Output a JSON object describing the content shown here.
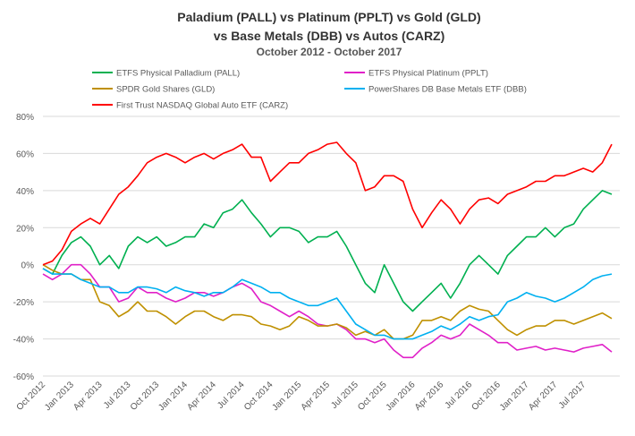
{
  "chart_data": {
    "type": "line",
    "title": [
      "Paladium (PALL) vs Platinum (PPLT) vs Gold (GLD)",
      "vs Base Metals (DBB) vs Autos (CARZ)"
    ],
    "subtitle": "October 2012 - October 2017",
    "ylim": [
      -60,
      80
    ],
    "y_ticks": [
      "-60%",
      "-40%",
      "-20%",
      "0%",
      "20%",
      "40%",
      "60%",
      "80%"
    ],
    "y_tick_values": [
      -60,
      -40,
      -20,
      0,
      20,
      40,
      60,
      80
    ],
    "x_ticks": [
      "Oct 2012",
      "Jan 2013",
      "Apr 2013",
      "Jul 2013",
      "Oct 2013",
      "Jan 2014",
      "Apr 2014",
      "Jul 2014",
      "Oct 2014",
      "Jan 2015",
      "Apr 2015",
      "Jul 2015",
      "Oct 2015",
      "Jan 2016",
      "Apr 2016",
      "Jul 2016",
      "Oct 2016",
      "Jan 2017",
      "Apr 2017",
      "Jul 2017"
    ],
    "x_unit": "months since Oct 2012",
    "grid": true,
    "legend_position": "top",
    "series": [
      {
        "name": "ETFS Physical Palladium (PALL)",
        "color": "#00b050",
        "values": [
          -2,
          -5,
          5,
          12,
          15,
          10,
          0,
          5,
          -2,
          10,
          15,
          12,
          15,
          10,
          12,
          15,
          15,
          22,
          20,
          28,
          30,
          35,
          28,
          22,
          15,
          20,
          20,
          18,
          12,
          15,
          15,
          18,
          10,
          0,
          -10,
          -15,
          0,
          -10,
          -20,
          -25,
          -20,
          -15,
          -10,
          -18,
          -10,
          0,
          5,
          0,
          -5,
          5,
          10,
          15,
          15,
          20,
          15,
          20,
          22,
          30,
          35,
          40,
          38
        ]
      },
      {
        "name": "ETFS Physical Platinum (PPLT)",
        "color": "#e020c8",
        "values": [
          -5,
          -8,
          -5,
          0,
          0,
          -5,
          -12,
          -12,
          -20,
          -18,
          -12,
          -15,
          -15,
          -18,
          -20,
          -18,
          -15,
          -15,
          -17,
          -15,
          -12,
          -10,
          -13,
          -20,
          -22,
          -25,
          -28,
          -25,
          -28,
          -32,
          -33,
          -32,
          -35,
          -40,
          -40,
          -42,
          -40,
          -46,
          -50,
          -50,
          -45,
          -42,
          -38,
          -40,
          -38,
          -32,
          -35,
          -38,
          -42,
          -42,
          -46,
          -45,
          -44,
          -46,
          -45,
          -46,
          -47,
          -45,
          -44,
          -43,
          -47
        ]
      },
      {
        "name": "SPDR Gold Shares (GLD)",
        "color": "#bf9000",
        "values": [
          0,
          -3,
          -5,
          -5,
          -8,
          -8,
          -20,
          -22,
          -28,
          -25,
          -20,
          -25,
          -25,
          -28,
          -32,
          -28,
          -25,
          -25,
          -28,
          -30,
          -27,
          -27,
          -28,
          -32,
          -33,
          -35,
          -33,
          -28,
          -30,
          -33,
          -33,
          -32,
          -34,
          -38,
          -36,
          -38,
          -35,
          -40,
          -40,
          -38,
          -30,
          -30,
          -28,
          -30,
          -25,
          -22,
          -24,
          -25,
          -30,
          -35,
          -38,
          -35,
          -33,
          -33,
          -30,
          -30,
          -32,
          -30,
          -28,
          -26,
          -29
        ]
      },
      {
        "name": "PowerShares DB Base Metals ETF (DBB)",
        "color": "#00b0f0",
        "values": [
          -2,
          -5,
          -5,
          -5,
          -8,
          -10,
          -12,
          -12,
          -15,
          -15,
          -12,
          -12,
          -13,
          -15,
          -12,
          -14,
          -15,
          -17,
          -15,
          -15,
          -12,
          -8,
          -10,
          -12,
          -15,
          -15,
          -18,
          -20,
          -22,
          -22,
          -20,
          -18,
          -25,
          -32,
          -35,
          -38,
          -38,
          -40,
          -40,
          -40,
          -38,
          -36,
          -33,
          -35,
          -32,
          -28,
          -30,
          -28,
          -27,
          -20,
          -18,
          -15,
          -17,
          -18,
          -20,
          -18,
          -15,
          -12,
          -8,
          -6,
          -5
        ]
      },
      {
        "name": "First Trust NASDAQ Global Auto ETF (CARZ)",
        "color": "#ff0000",
        "values": [
          0,
          2,
          8,
          18,
          22,
          25,
          22,
          30,
          38,
          42,
          48,
          55,
          58,
          60,
          58,
          55,
          58,
          60,
          57,
          60,
          62,
          65,
          58,
          58,
          45,
          50,
          55,
          55,
          60,
          62,
          65,
          66,
          60,
          55,
          40,
          42,
          48,
          48,
          45,
          30,
          20,
          28,
          35,
          30,
          22,
          30,
          35,
          36,
          33,
          38,
          40,
          42,
          45,
          45,
          48,
          48,
          50,
          52,
          50,
          55,
          65
        ]
      }
    ]
  }
}
